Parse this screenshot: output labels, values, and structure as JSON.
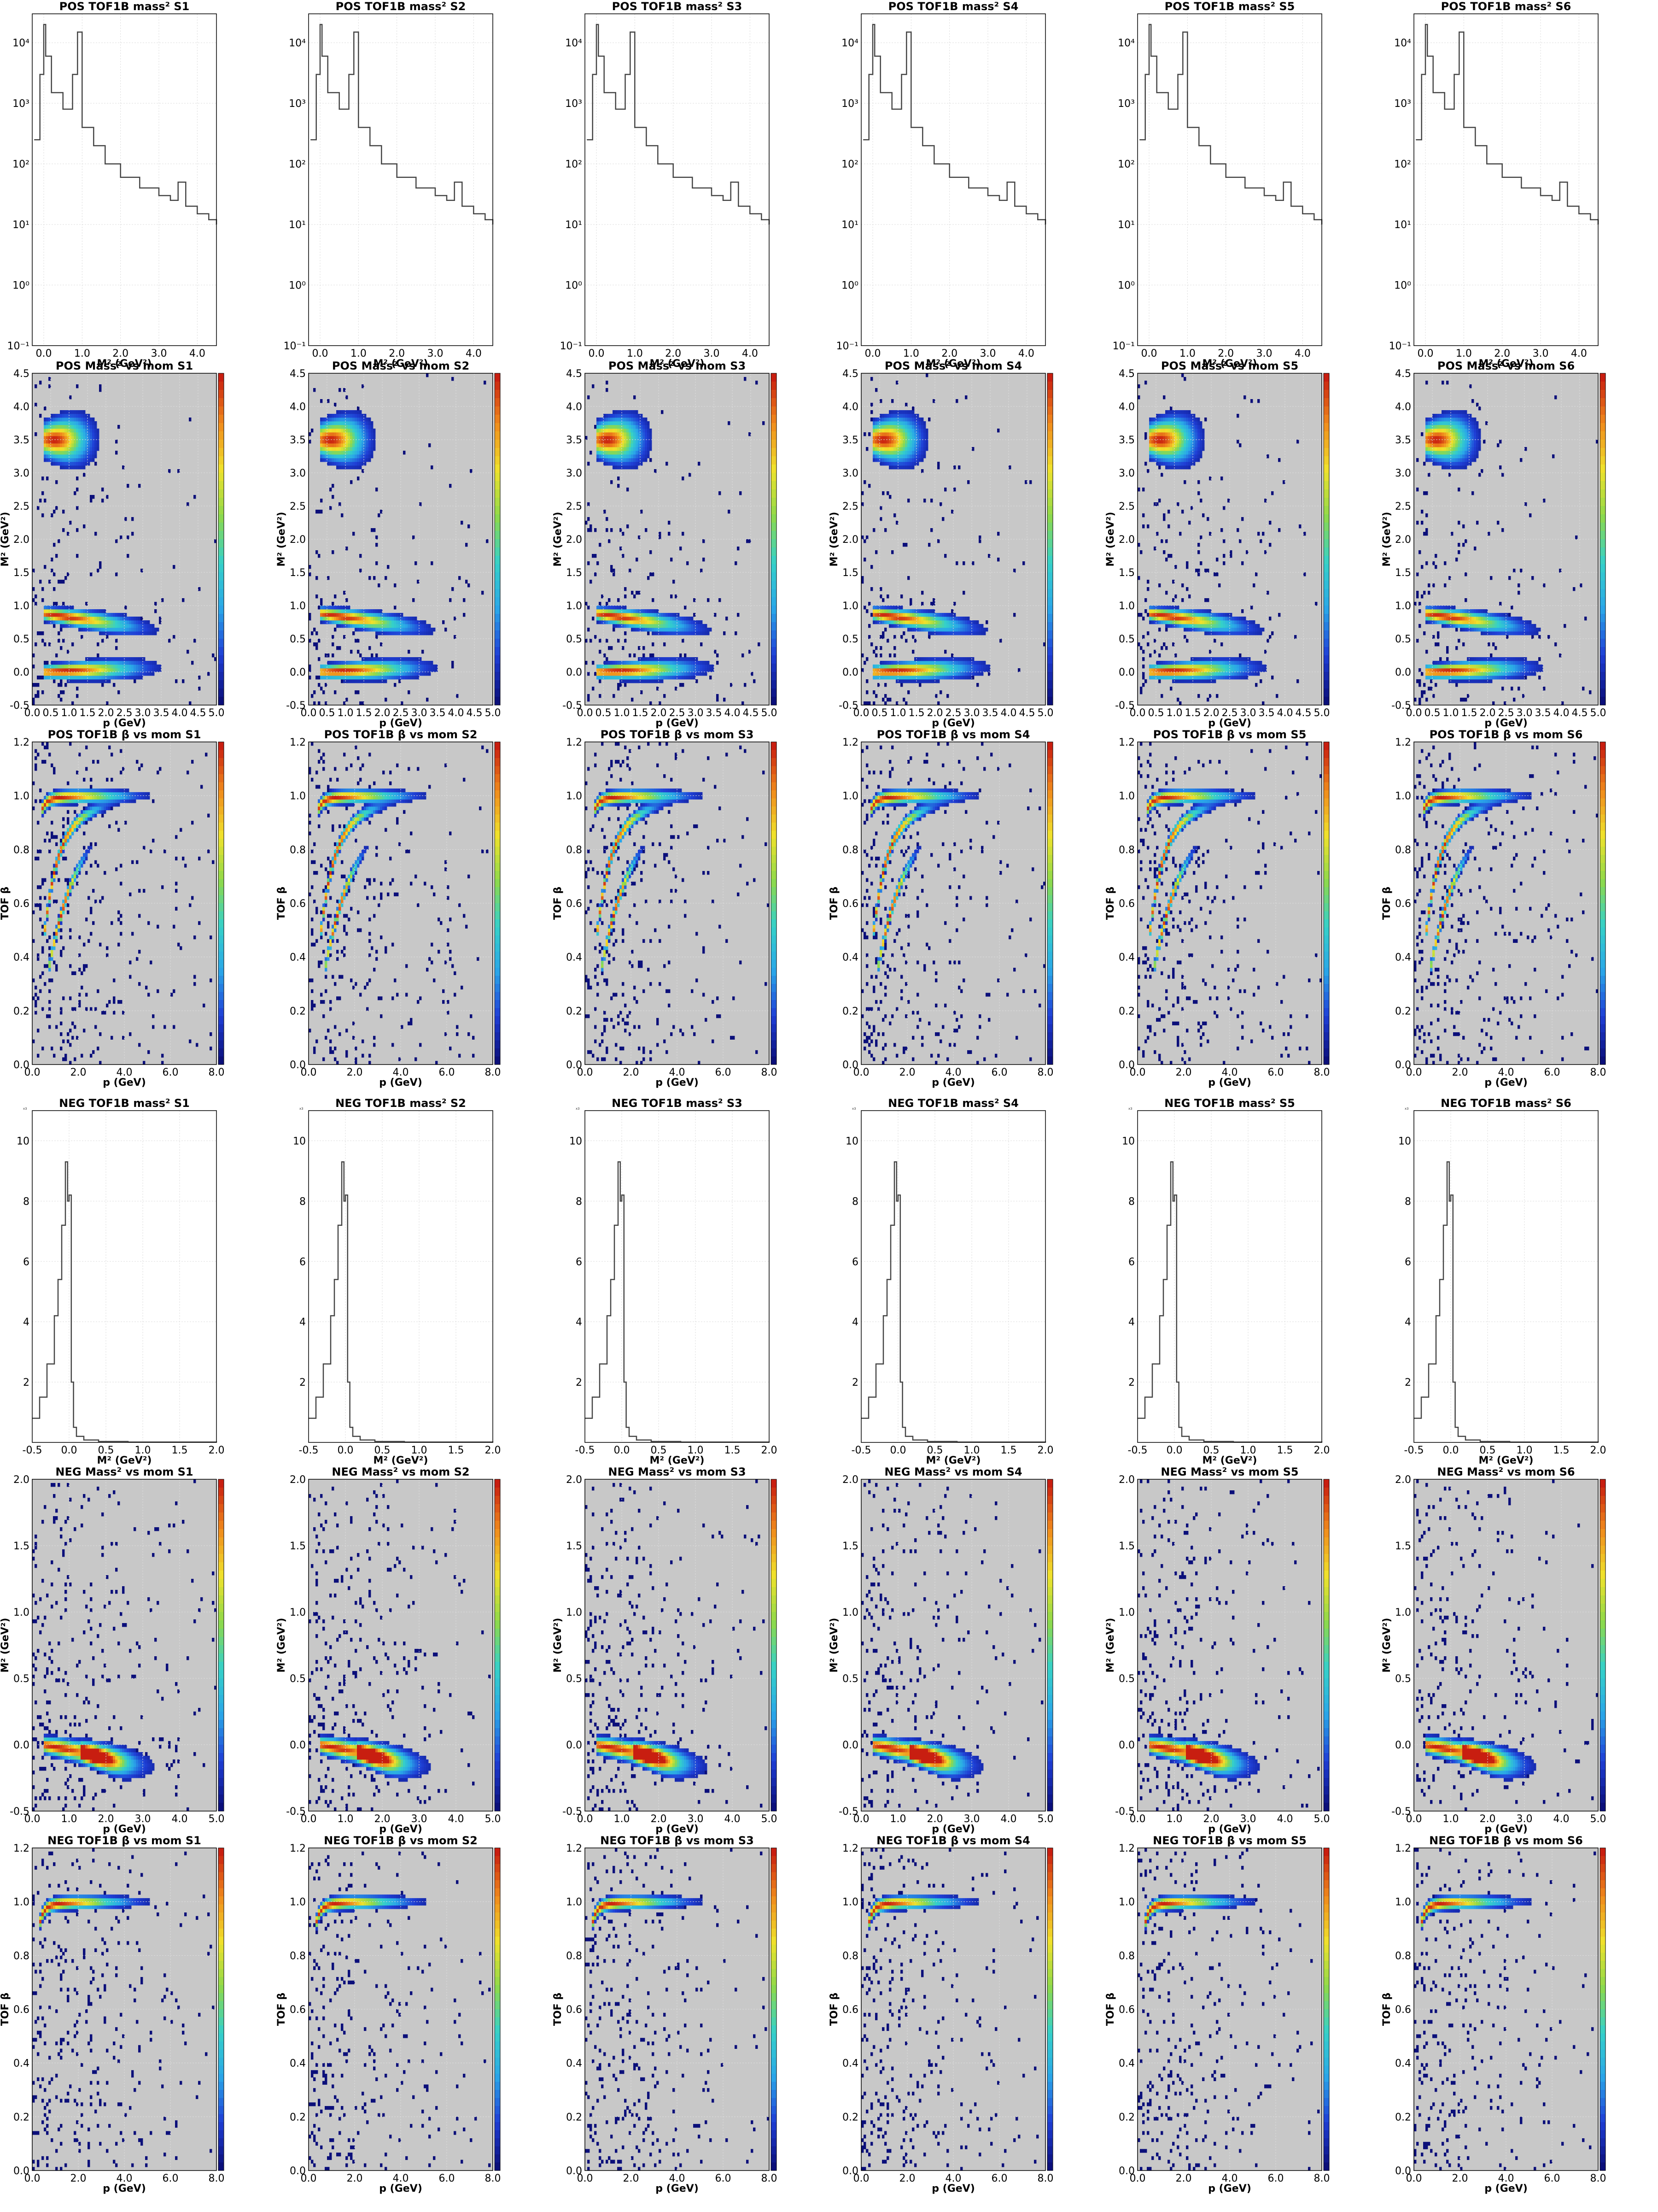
{
  "figure": {
    "rows": [
      {
        "kind": "mass2_log",
        "title_prefix": "POS TOF1B mass",
        "title_suffix": "2",
        "xlabel": "M² (GeV²)",
        "ylabel": ""
      },
      {
        "kind": "mass2_vs_mom",
        "title_prefix": "POS Mass² vs mom",
        "xlabel": "p (GeV)",
        "ylabel": "M² (GeV²)"
      },
      {
        "kind": "beta_vs_mom",
        "title_prefix": "POS TOF1B β vs mom",
        "xlabel": "p (GeV)",
        "ylabel": "TOF β"
      },
      {
        "kind": "mass2_lin",
        "title_prefix": "NEG TOF1B mass",
        "xlabel": "M² (GeV²)",
        "ylabel": ""
      },
      {
        "kind": "mass2_vs_mom",
        "title_prefix": "NEG Mass² vs mom",
        "xlabel": "p (GeV)",
        "ylabel": "M² (GeV²)"
      },
      {
        "kind": "beta_vs_mom",
        "title_prefix": "NEG TOF1B β vs mom",
        "xlabel": "p (GeV)",
        "ylabel": "TOF β"
      }
    ],
    "sectors": [
      "S1",
      "S2",
      "S3",
      "S4",
      "S5",
      "S6"
    ],
    "colors": {
      "background_2d": "#c8c8c8",
      "line": "#444444",
      "grid": "#dddddd",
      "colormap": [
        "#0b0f7a",
        "#1f3fd6",
        "#2aa7e8",
        "#35d1c8",
        "#8fd94a",
        "#f0e22c",
        "#f08a1c",
        "#c81e10"
      ]
    }
  },
  "chart_data": [
    {
      "type": "line",
      "title": "POS TOF1B mass² S1 … S6",
      "xlabel": "M² (GeV²)",
      "ylabel": "",
      "xlim": [
        -0.3,
        4.5
      ],
      "ylim": [
        0.1,
        30000
      ],
      "yscale": "log",
      "xticks": [
        "0.0",
        "1.0",
        "2.0",
        "3.0",
        "4.0"
      ],
      "yticks": [
        "10⁻¹",
        "10⁰",
        "10¹",
        "10²",
        "10³",
        "10⁴"
      ],
      "grid": true,
      "x": [
        -0.25,
        -0.1,
        0.0,
        0.05,
        0.2,
        0.5,
        0.75,
        0.88,
        1.0,
        1.3,
        1.6,
        2.0,
        2.5,
        3.0,
        3.3,
        3.5,
        3.7,
        4.0,
        4.3,
        4.5
      ],
      "series": [
        {
          "values": [
            250,
            3000,
            20000,
            6000,
            1500,
            800,
            3000,
            15000,
            400,
            200,
            100,
            60,
            40,
            30,
            25,
            50,
            20,
            15,
            12,
            10
          ]
        }
      ]
    },
    {
      "type": "heatmap",
      "title": "POS Mass² vs mom S1 … S6",
      "xlabel": "p (GeV)",
      "ylabel": "M² (GeV²)",
      "xlim": [
        0.0,
        5.0
      ],
      "ylim": [
        -0.5,
        4.5
      ],
      "xticks": [
        "0.0",
        "0.5",
        "1.0",
        "1.5",
        "2.0",
        "2.5",
        "3.0",
        "3.5",
        "4.0",
        "4.5",
        "5.0"
      ],
      "yticks": [
        "-0.5",
        "0.0",
        "0.5",
        "1.0",
        "1.5",
        "2.0",
        "2.5",
        "3.0",
        "3.5",
        "4.0",
        "4.5"
      ],
      "bands": [
        {
          "y": 0.0,
          "x_from": 0.3,
          "x_peak": 0.9,
          "x_to": 5.0,
          "y_at_end": 0.1,
          "width": 0.08
        },
        {
          "y": 0.88,
          "x_from": 0.3,
          "x_peak": 0.8,
          "x_to": 5.0,
          "y_at_end": 0.5,
          "width": 0.08
        },
        {
          "y": 3.5,
          "x_from": 0.3,
          "x_peak": 0.6,
          "x_to": 2.5,
          "y_at_end": 3.5,
          "width": 0.2
        }
      ]
    },
    {
      "type": "heatmap",
      "title": "POS TOF1B β vs mom S1 … S6",
      "xlabel": "p (GeV)",
      "ylabel": "TOF β",
      "xlim": [
        0.0,
        8.0
      ],
      "ylim": [
        0.0,
        1.2
      ],
      "xticks": [
        "0.0",
        "2.0",
        "4.0",
        "6.0",
        "8.0"
      ],
      "yticks": [
        "0.0",
        "0.2",
        "0.4",
        "0.6",
        "0.8",
        "1.0",
        "1.2"
      ],
      "bands": [
        {
          "curve": "beta",
          "mass": 0.14,
          "x_from": 0.4,
          "x_to": 8.0
        },
        {
          "curve": "beta",
          "mass": 0.94,
          "x_from": 0.5,
          "x_to": 5.0
        },
        {
          "curve": "beta",
          "mass": 1.87,
          "x_from": 0.7,
          "x_to": 3.0
        }
      ]
    },
    {
      "type": "line",
      "title": "NEG TOF1B mass² S1 … S6",
      "xlabel": "M² (GeV²)",
      "ylabel": "",
      "ylabel_multiplier": "x3",
      "xlim": [
        -0.5,
        2.0
      ],
      "ylim": [
        0,
        11
      ],
      "xticks": [
        "-0.5",
        "0.0",
        "0.5",
        "1.0",
        "1.5",
        "2.0"
      ],
      "yticks": [
        "2",
        "4",
        "6",
        "8",
        "10"
      ],
      "grid": true,
      "x": [
        -0.5,
        -0.4,
        -0.3,
        -0.2,
        -0.15,
        -0.1,
        -0.05,
        -0.02,
        0.0,
        0.03,
        0.06,
        0.1,
        0.2,
        0.4,
        0.8,
        2.0
      ],
      "series": [
        {
          "values": [
            0.8,
            1.5,
            2.6,
            4.2,
            5.4,
            7.2,
            9.3,
            8.0,
            8.2,
            2.0,
            0.5,
            0.2,
            0.08,
            0.03,
            0.01,
            0.0
          ]
        }
      ]
    },
    {
      "type": "heatmap",
      "title": "NEG Mass² vs mom S1 … S6",
      "xlabel": "p (GeV)",
      "ylabel": "M² (GeV²)",
      "xlim": [
        0.0,
        5.0
      ],
      "ylim": [
        -0.5,
        2.0
      ],
      "xticks": [
        "0.0",
        "1.0",
        "2.0",
        "3.0",
        "4.0",
        "5.0"
      ],
      "yticks": [
        "-0.5",
        "0.0",
        "0.5",
        "1.0",
        "1.5",
        "2.0"
      ],
      "bands": [
        {
          "y": 0.0,
          "x_from": 0.3,
          "x_peak": 0.7,
          "x_to": 5.0,
          "y_at_end": -0.25,
          "width": 0.05
        },
        {
          "y": -0.05,
          "x_from": 1.3,
          "x_peak": 1.6,
          "x_to": 3.5,
          "y_at_end": -0.25,
          "width": 0.05
        }
      ]
    },
    {
      "type": "heatmap",
      "title": "NEG TOF1B β vs mom S1 … S6",
      "xlabel": "p (GeV)",
      "ylabel": "TOF β",
      "xlim": [
        0.0,
        8.0
      ],
      "ylim": [
        0.0,
        1.2
      ],
      "xticks": [
        "0.0",
        "2.0",
        "4.0",
        "6.0",
        "8.0"
      ],
      "yticks": [
        "0.0",
        "0.2",
        "0.4",
        "0.6",
        "0.8",
        "1.0",
        "1.2"
      ],
      "bands": [
        {
          "curve": "beta",
          "mass": 0.14,
          "x_from": 0.3,
          "x_to": 8.0
        }
      ]
    }
  ]
}
